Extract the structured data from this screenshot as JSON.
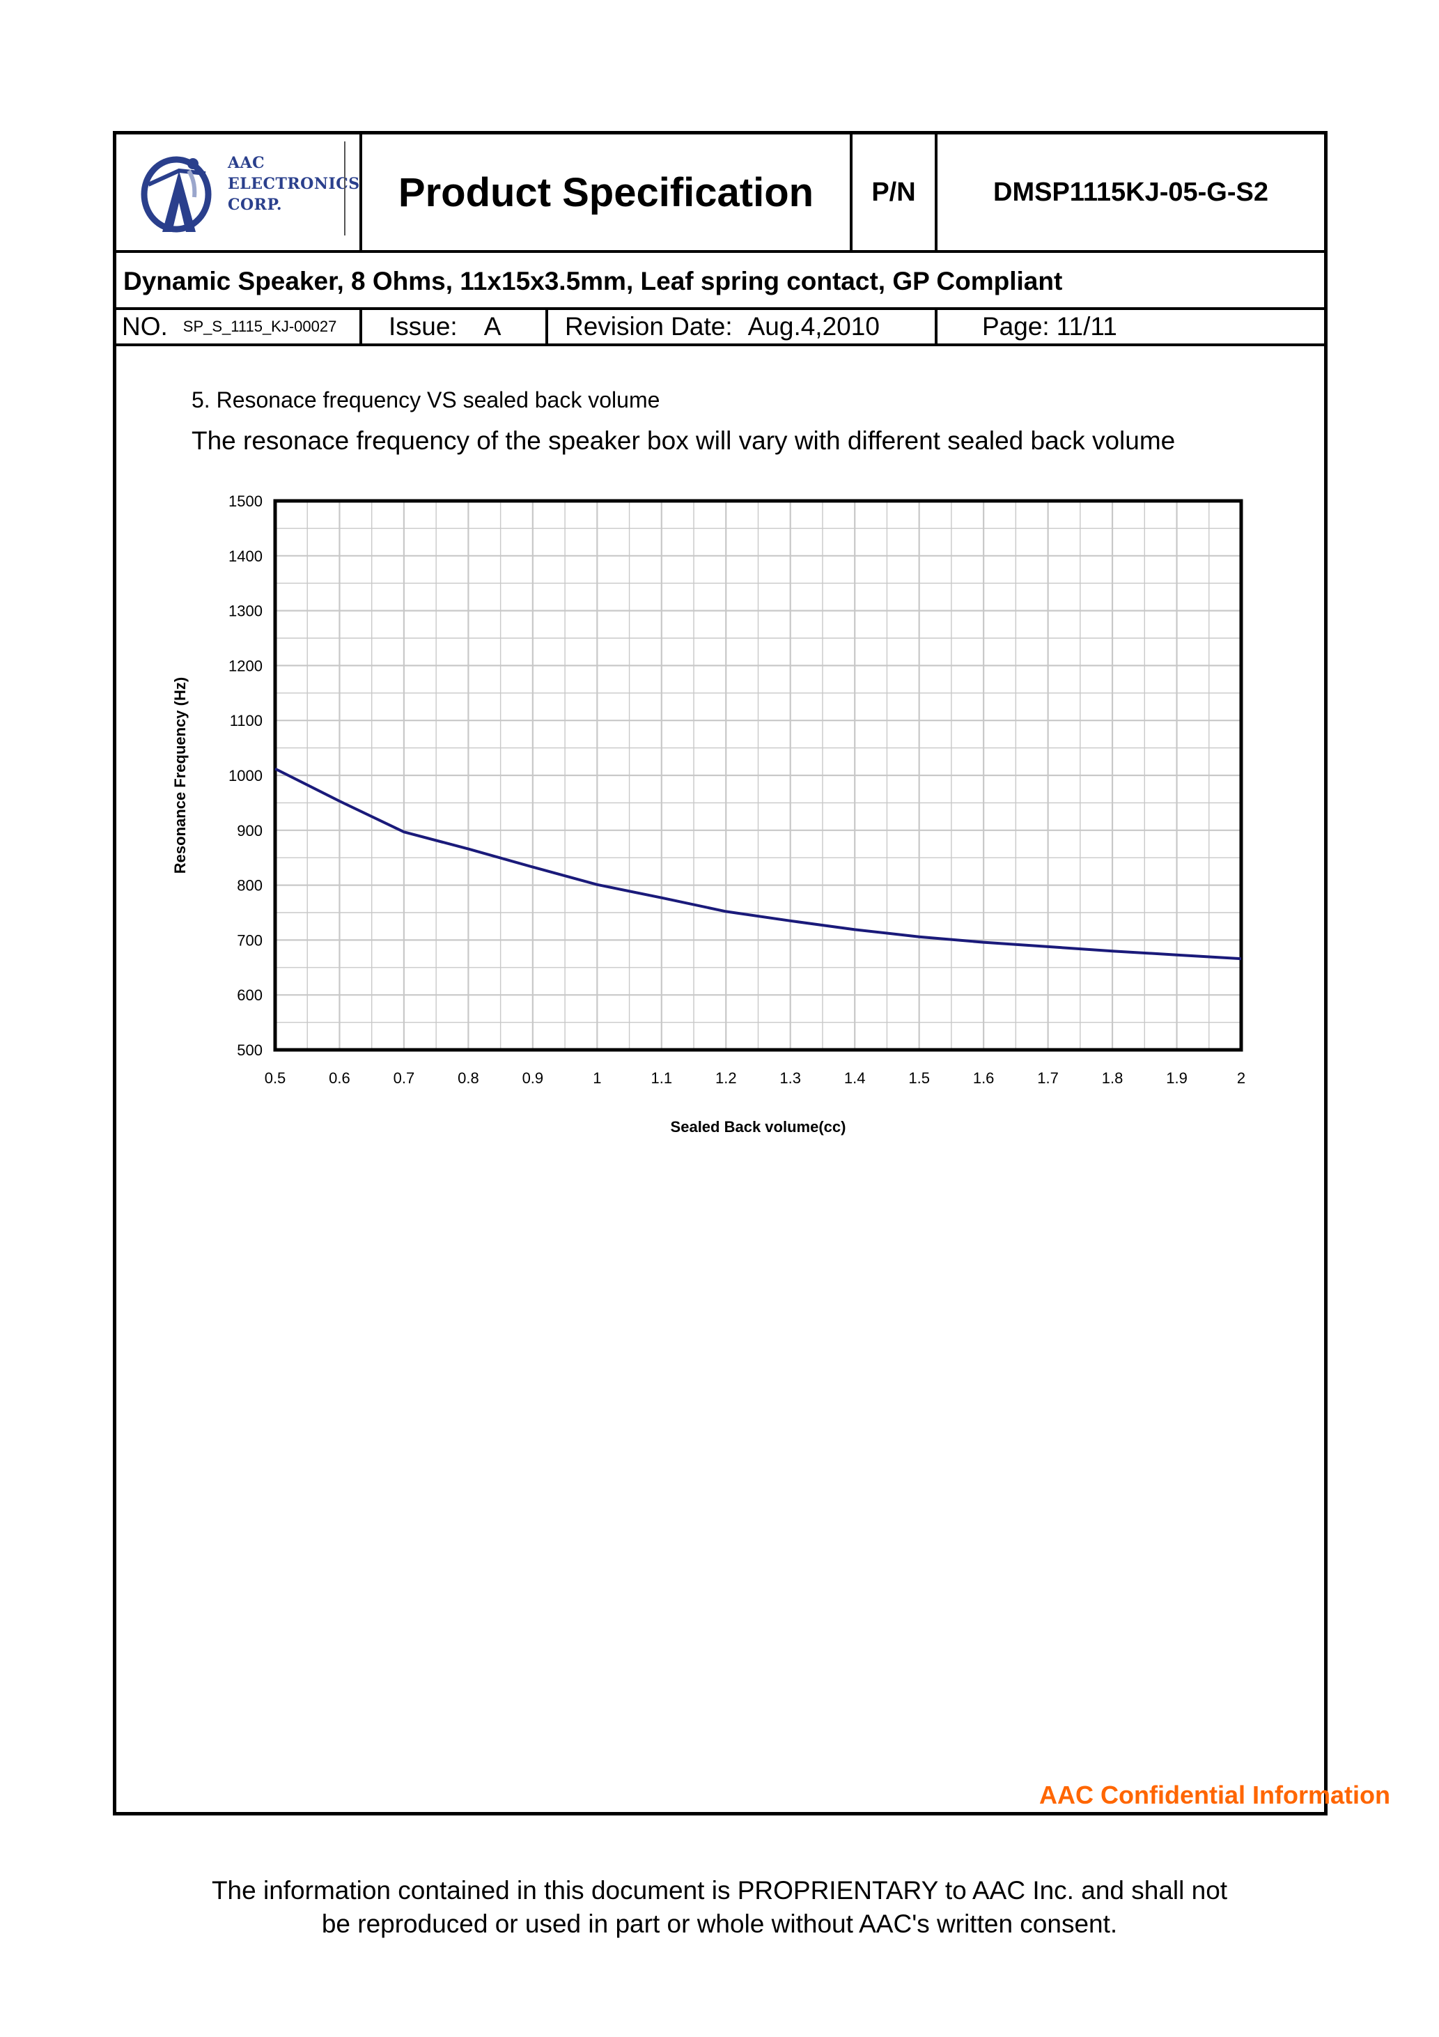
{
  "header": {
    "logo_lines": [
      "AAC",
      "ELECTRONICS",
      "CORP."
    ],
    "title": "Product Specification",
    "pn_label": "P/N",
    "pn_value": "DMSP1115KJ-05-G-S2",
    "subtitle": "Dynamic Speaker, 8 Ohms, 11x15x3.5mm, Leaf spring contact, GP Compliant",
    "no_label": "NO.",
    "no_value": "SP_S_1115_KJ-00027",
    "issue_label": "Issue:",
    "issue_value": "A",
    "revision_label": "Revision Date:",
    "revision_value": "Aug.4,2010",
    "page_label": "Page:",
    "page_value": "11/11"
  },
  "section": {
    "heading": "5. Resonace frequency VS sealed back volume",
    "description": "The resonace frequency of the speaker box will vary with different sealed back volume"
  },
  "chart_data": {
    "type": "line",
    "xlabel": "Sealed Back volume(cc)",
    "ylabel": "Resonance Frequency (Hz)",
    "xlim": [
      0.5,
      2
    ],
    "ylim": [
      500,
      1500
    ],
    "x_ticks": [
      "0.5",
      "0.6",
      "0.7",
      "0.8",
      "0.9",
      "1",
      "1.1",
      "1.2",
      "1.3",
      "1.4",
      "1.5",
      "1.6",
      "1.7",
      "1.8",
      "1.9",
      "2"
    ],
    "y_ticks": [
      "1500",
      "1400",
      "1300",
      "1200",
      "1100",
      "1000",
      "900",
      "800",
      "700",
      "600",
      "500"
    ],
    "grid": true,
    "line_color": "#1a1a7a",
    "series": [
      {
        "x": [
          0.5,
          0.6,
          0.7,
          0.8,
          0.9,
          1.0,
          1.1,
          1.2,
          1.3,
          1.4,
          1.5,
          1.6,
          1.7,
          1.8,
          1.9,
          2.0
        ],
        "values": [
          1012,
          953,
          897,
          866,
          833,
          801,
          777,
          752,
          735,
          719,
          706,
          696,
          688,
          680,
          673,
          666
        ]
      }
    ]
  },
  "confidential": "AAC Confidential Information",
  "footer": {
    "line1": "The information contained in this document is PROPRIENTARY to AAC Inc. and shall not",
    "line2": "be reproduced or used in part or whole without AAC's written consent."
  },
  "colors": {
    "logo_blue": "#2a3f8c",
    "confidential_orange": "#ff6600",
    "curve": "#1a1a7a"
  }
}
